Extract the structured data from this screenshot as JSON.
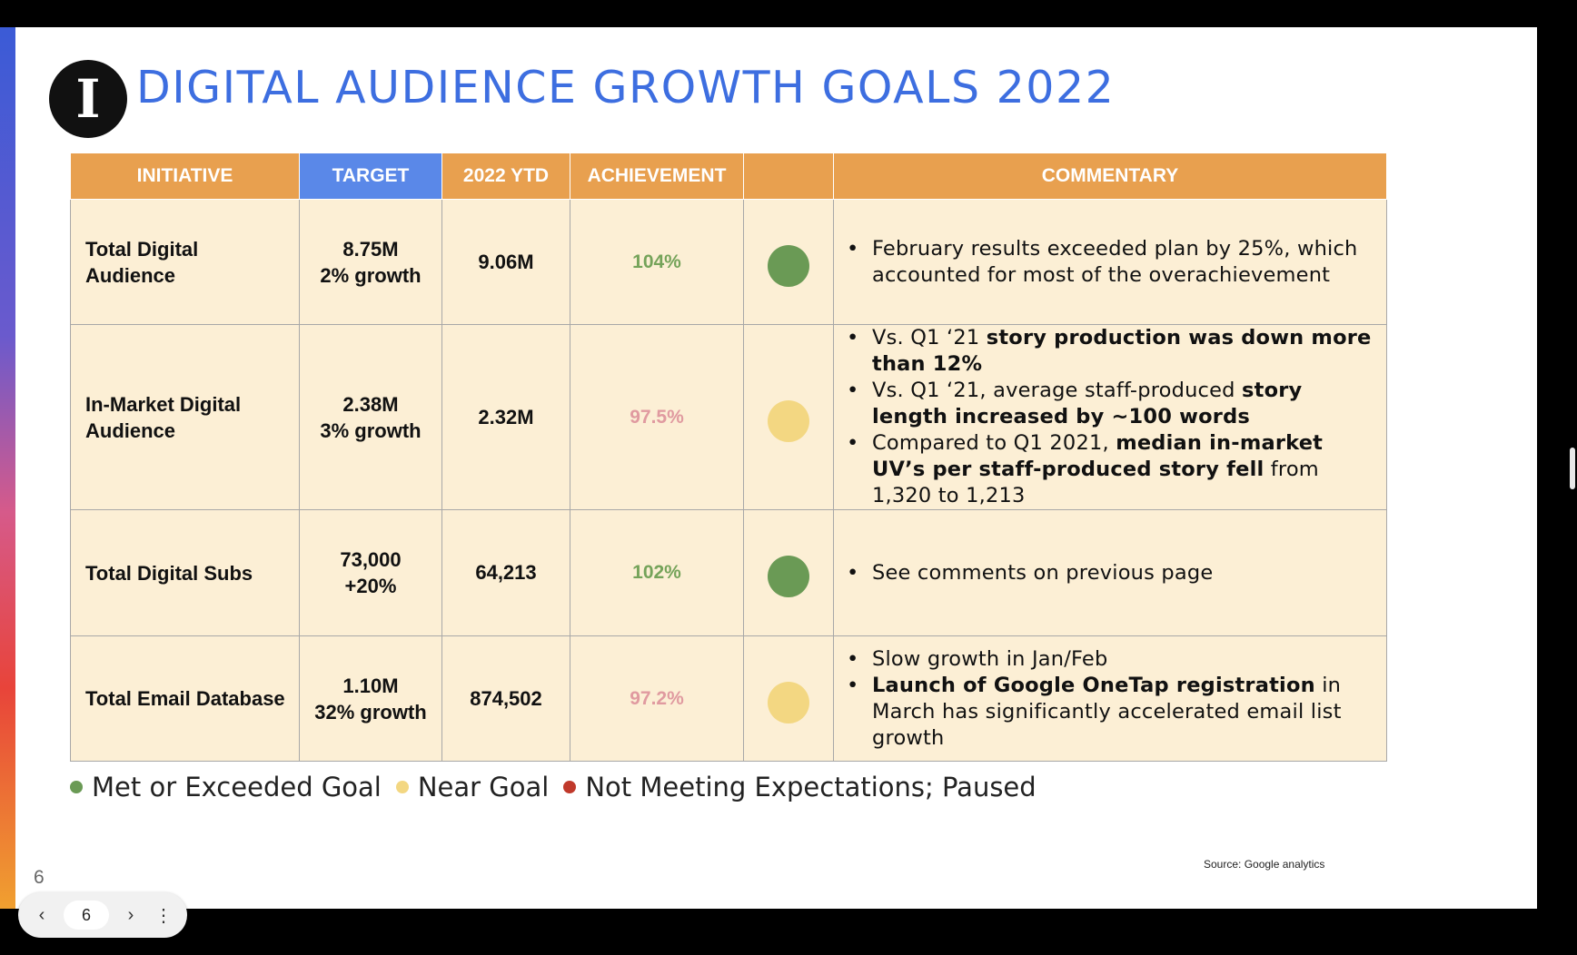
{
  "slide": {
    "title": "DIGITAL AUDIENCE GROWTH GOALS 2022",
    "logo_letter": "I",
    "table": {
      "headers": {
        "initiative": "INITIATIVE",
        "target": "TARGET",
        "ytd": "2022 YTD",
        "achievement": "ACHIEVEMENT",
        "status": "",
        "commentary": "COMMENTARY"
      },
      "rows": [
        {
          "initiative_line1": "Total Digital",
          "initiative_line2": "Audience",
          "target_line1": "8.75M",
          "target_line2": "2% growth",
          "ytd": "9.06M",
          "achievement": "104%",
          "status": "green",
          "commentary": [
            {
              "text": "February results exceeded plan by 25%, which accounted for most of the overachievement"
            }
          ]
        },
        {
          "initiative_line1": "In-Market Digital",
          "initiative_line2": "Audience",
          "target_line1": "2.38M",
          "target_line2": "3% growth",
          "ytd": "2.32M",
          "achievement": "97.5%",
          "status": "yellow",
          "commentary": [
            {
              "pre": "Vs. Q1 ‘21 ",
              "bold": "story production was down more than 12%",
              "post": ""
            },
            {
              "pre": "Vs. Q1 ‘21, average staff-produced ",
              "bold": "story length increased by ~100 words",
              "post": ""
            },
            {
              "pre": "Compared to Q1 2021, ",
              "bold": "median in-market UV’s per staff-produced story fell",
              "post": " from 1,320 to 1,213"
            }
          ]
        },
        {
          "initiative_line1": "Total Digital Subs",
          "initiative_line2": "",
          "target_line1": "73,000",
          "target_line2": "+20%",
          "ytd": "64,213",
          "achievement": "102%",
          "status": "green",
          "commentary": [
            {
              "text": "See comments on previous page"
            }
          ]
        },
        {
          "initiative_line1": "Total Email Database",
          "initiative_line2": "",
          "target_line1": "1.10M",
          "target_line2": "32% growth",
          "ytd": "874,502",
          "achievement": "97.2%",
          "status": "yellow",
          "commentary": [
            {
              "text": "Slow growth in Jan/Feb"
            },
            {
              "pre": "",
              "bold": "Launch of Google OneTap registration",
              "post": " in March has significantly accelerated email list growth"
            }
          ]
        }
      ]
    },
    "legend": {
      "met": "Met or Exceeded Goal",
      "near": "Near Goal",
      "not_meeting": "Not Meeting Expectations; Paused"
    },
    "source": "Source: Google analytics",
    "page_number": "6"
  },
  "colors": {
    "title": "#3d6ee0",
    "header_orange": "#e8a04f",
    "header_blue": "#5a88e8",
    "cell_bg": "#fcefd5",
    "status_green": "#6a9a55",
    "status_yellow": "#f3d782",
    "status_red": "#c0392b"
  },
  "nav": {
    "current_page": "6",
    "prev_icon": "chevron-left-icon",
    "next_icon": "chevron-right-icon",
    "more_icon": "more-vertical-icon"
  }
}
